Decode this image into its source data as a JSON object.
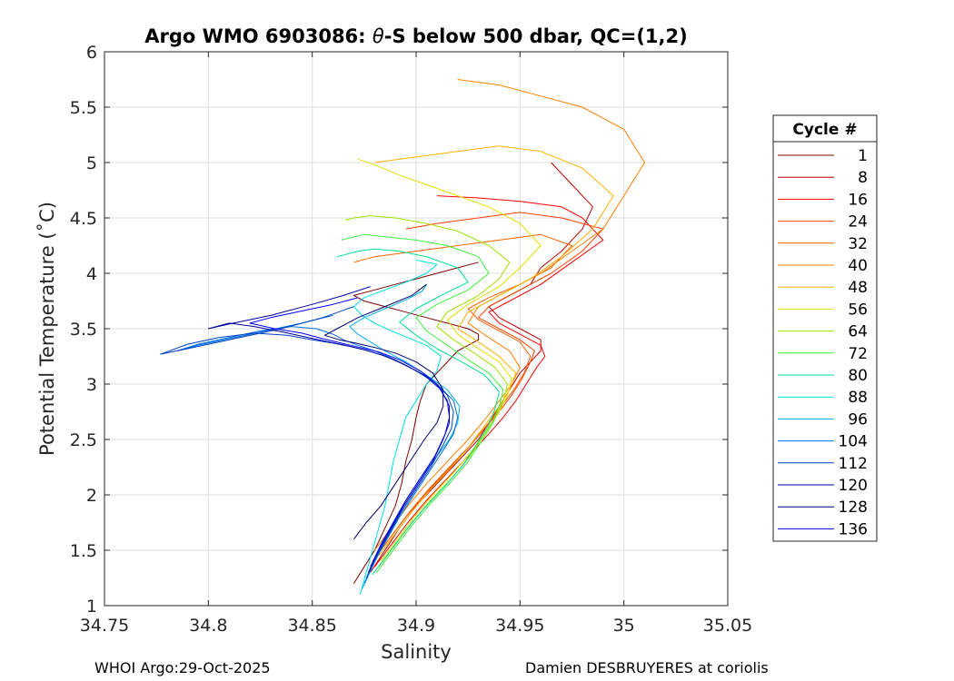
{
  "chart_data": {
    "type": "line",
    "title": "Argo WMO 6903086: θ-S below 500 dbar,  QC=(1,2)",
    "title_prefix": "Argo WMO 6903086: ",
    "title_theta": "θ",
    "title_suffix": "-S below 500 dbar,  QC=(1,2)",
    "xlabel": "Salinity",
    "ylabel": "Potential Temperature (˚C)",
    "xlim": [
      34.75,
      35.05
    ],
    "ylim": [
      1,
      6
    ],
    "xticks": [
      34.75,
      34.8,
      34.85,
      34.9,
      34.95,
      35,
      35.05
    ],
    "xtick_labels": [
      "34.75",
      "34.8",
      "34.85",
      "34.9",
      "34.95",
      "35",
      "35.05"
    ],
    "yticks": [
      1,
      1.5,
      2,
      2.5,
      3,
      3.5,
      4,
      4.5,
      5,
      5.5,
      6
    ],
    "ytick_labels": [
      "1",
      "1.5",
      "2",
      "2.5",
      "3",
      "3.5",
      "4",
      "4.5",
      "5",
      "5.5",
      "6"
    ],
    "grid": true,
    "legend_position": "right",
    "legend_title": "Cycle #",
    "series": [
      {
        "name": "1",
        "color": "#800000",
        "x": [
          34.87,
          34.875,
          34.88,
          34.885,
          34.89,
          34.893,
          34.895,
          34.898,
          34.9,
          34.902,
          34.905,
          34.91,
          34.915,
          34.92,
          34.925,
          34.93,
          34.93,
          34.925,
          34.915,
          34.905,
          34.895,
          34.885,
          34.875,
          34.87,
          34.88,
          34.89,
          34.9,
          34.91,
          34.92,
          34.93
        ],
        "y": [
          1.2,
          1.35,
          1.5,
          1.7,
          1.9,
          2.1,
          2.3,
          2.5,
          2.7,
          2.85,
          3.0,
          3.1,
          3.2,
          3.3,
          3.35,
          3.4,
          3.45,
          3.5,
          3.55,
          3.6,
          3.65,
          3.7,
          3.75,
          3.8,
          3.85,
          3.9,
          3.95,
          4.0,
          4.05,
          4.1
        ]
      },
      {
        "name": "8",
        "color": "#c00000",
        "x": [
          34.878,
          34.885,
          34.892,
          34.9,
          34.91,
          34.92,
          34.93,
          34.935,
          34.94,
          34.945,
          34.95,
          34.955,
          34.96,
          34.96,
          34.95,
          34.94,
          34.935,
          34.945,
          34.955,
          34.96,
          34.97,
          34.98,
          34.985,
          34.975,
          34.965
        ],
        "y": [
          1.3,
          1.5,
          1.7,
          1.9,
          2.1,
          2.3,
          2.5,
          2.65,
          2.8,
          2.95,
          3.1,
          3.2,
          3.3,
          3.4,
          3.5,
          3.6,
          3.7,
          3.8,
          3.9,
          4.05,
          4.2,
          4.4,
          4.6,
          4.8,
          5.0
        ]
      },
      {
        "name": "16",
        "color": "#ff0000",
        "x": [
          34.88,
          34.888,
          34.896,
          34.905,
          34.915,
          34.925,
          34.935,
          34.942,
          34.948,
          34.953,
          34.958,
          34.962,
          34.96,
          34.95,
          34.94,
          34.935,
          34.945,
          34.96,
          34.975,
          34.99,
          34.98,
          34.97,
          34.95,
          34.93,
          34.91
        ],
        "y": [
          1.35,
          1.55,
          1.75,
          1.95,
          2.15,
          2.35,
          2.55,
          2.7,
          2.85,
          3.0,
          3.15,
          3.25,
          3.35,
          3.45,
          3.55,
          3.65,
          3.75,
          3.9,
          4.1,
          4.3,
          4.5,
          4.6,
          4.65,
          4.68,
          4.7
        ]
      },
      {
        "name": "24",
        "color": "#ff4000",
        "x": [
          34.879,
          34.887,
          34.895,
          34.904,
          34.914,
          34.924,
          34.933,
          34.94,
          34.946,
          34.951,
          34.955,
          34.957,
          34.95,
          34.94,
          34.93,
          34.935,
          34.95,
          34.965,
          34.98,
          34.99,
          34.97,
          34.95,
          34.93,
          34.91,
          34.895
        ],
        "y": [
          1.4,
          1.6,
          1.8,
          2.0,
          2.2,
          2.4,
          2.6,
          2.75,
          2.9,
          3.05,
          3.2,
          3.3,
          3.4,
          3.5,
          3.6,
          3.7,
          3.85,
          4.0,
          4.2,
          4.4,
          4.5,
          4.55,
          4.5,
          4.45,
          4.4
        ]
      },
      {
        "name": "32",
        "color": "#ff6000",
        "x": [
          34.881,
          34.889,
          34.897,
          34.906,
          34.916,
          34.926,
          34.935,
          34.941,
          34.947,
          34.952,
          34.955,
          34.95,
          34.94,
          34.93,
          34.925,
          34.935,
          34.95,
          34.965,
          34.975,
          34.96,
          34.94,
          34.92,
          34.9,
          34.88,
          34.87
        ],
        "y": [
          1.45,
          1.65,
          1.85,
          2.05,
          2.25,
          2.45,
          2.65,
          2.8,
          2.95,
          3.1,
          3.25,
          3.38,
          3.48,
          3.58,
          3.68,
          3.78,
          3.9,
          4.05,
          4.25,
          4.35,
          4.3,
          4.25,
          4.2,
          4.15,
          4.1
        ]
      },
      {
        "name": "40",
        "color": "#ff8000",
        "x": [
          34.88,
          34.888,
          34.896,
          34.905,
          34.915,
          34.925,
          34.934,
          34.94,
          34.946,
          34.95,
          34.945,
          34.935,
          34.925,
          34.93,
          34.945,
          34.96,
          34.975,
          34.99,
          35.0,
          35.01,
          35.0,
          34.98,
          34.96,
          34.94,
          34.92
        ],
        "y": [
          1.5,
          1.7,
          1.9,
          2.1,
          2.3,
          2.5,
          2.7,
          2.85,
          3.0,
          3.15,
          3.3,
          3.42,
          3.55,
          3.7,
          3.85,
          4.0,
          4.2,
          4.4,
          4.7,
          5.0,
          5.3,
          5.5,
          5.6,
          5.7,
          5.75
        ]
      },
      {
        "name": "48",
        "color": "#ffb000",
        "x": [
          34.882,
          34.89,
          34.898,
          34.907,
          34.917,
          34.926,
          34.934,
          34.94,
          34.945,
          34.948,
          34.94,
          34.93,
          34.92,
          34.925,
          34.94,
          34.955,
          34.97,
          34.985,
          34.995,
          34.98,
          34.96,
          34.94,
          34.92,
          34.9,
          34.88
        ],
        "y": [
          1.45,
          1.65,
          1.85,
          2.05,
          2.25,
          2.45,
          2.65,
          2.8,
          2.95,
          3.1,
          3.25,
          3.38,
          3.5,
          3.65,
          3.8,
          3.95,
          4.15,
          4.4,
          4.7,
          4.95,
          5.1,
          5.15,
          5.1,
          5.05,
          5.0
        ]
      },
      {
        "name": "56",
        "color": "#e0e000",
        "x": [
          34.883,
          34.891,
          34.899,
          34.908,
          34.918,
          34.927,
          34.935,
          34.94,
          34.944,
          34.946,
          34.94,
          34.93,
          34.92,
          34.915,
          34.925,
          34.94,
          34.95,
          34.96,
          34.95,
          34.935,
          34.92,
          34.905,
          34.89,
          34.88,
          34.872
        ],
        "y": [
          1.4,
          1.6,
          1.8,
          2.0,
          2.2,
          2.4,
          2.6,
          2.75,
          2.9,
          3.05,
          3.2,
          3.32,
          3.45,
          3.58,
          3.72,
          3.88,
          4.05,
          4.25,
          4.45,
          4.6,
          4.7,
          4.8,
          4.9,
          4.98,
          5.03
        ]
      },
      {
        "name": "64",
        "color": "#a0e000",
        "x": [
          34.882,
          34.89,
          34.898,
          34.907,
          34.917,
          34.926,
          34.933,
          34.938,
          34.942,
          34.944,
          34.938,
          34.928,
          34.918,
          34.91,
          34.915,
          34.93,
          34.94,
          34.945,
          34.935,
          34.92,
          34.905,
          34.89,
          34.878,
          34.87,
          34.866
        ],
        "y": [
          1.35,
          1.55,
          1.75,
          1.95,
          2.15,
          2.35,
          2.55,
          2.7,
          2.85,
          3.0,
          3.15,
          3.28,
          3.4,
          3.52,
          3.65,
          3.8,
          3.95,
          4.1,
          4.25,
          4.38,
          4.45,
          4.5,
          4.52,
          4.5,
          4.48
        ]
      },
      {
        "name": "72",
        "color": "#40f040",
        "x": [
          34.881,
          34.889,
          34.897,
          34.906,
          34.916,
          34.925,
          34.932,
          34.937,
          34.94,
          34.942,
          34.935,
          34.925,
          34.915,
          34.905,
          34.9,
          34.91,
          34.925,
          34.935,
          34.93,
          34.915,
          34.9,
          34.885,
          34.875,
          34.868,
          34.864
        ],
        "y": [
          1.3,
          1.5,
          1.7,
          1.9,
          2.1,
          2.3,
          2.5,
          2.65,
          2.8,
          2.95,
          3.1,
          3.22,
          3.35,
          3.48,
          3.6,
          3.72,
          3.85,
          4.0,
          4.15,
          4.25,
          4.3,
          4.33,
          4.35,
          4.32,
          4.3
        ]
      },
      {
        "name": "80",
        "color": "#00e090",
        "x": [
          34.879,
          34.887,
          34.895,
          34.904,
          34.914,
          34.923,
          34.93,
          34.935,
          34.938,
          34.94,
          34.933,
          34.922,
          34.91,
          34.9,
          34.892,
          34.9,
          34.912,
          34.925,
          34.92,
          34.905,
          34.892,
          34.88,
          34.872,
          34.866,
          34.862
        ],
        "y": [
          1.28,
          1.48,
          1.68,
          1.88,
          2.08,
          2.28,
          2.48,
          2.63,
          2.78,
          2.93,
          3.08,
          3.2,
          3.32,
          3.44,
          3.56,
          3.68,
          3.8,
          3.92,
          4.05,
          4.15,
          4.2,
          4.22,
          4.2,
          4.17,
          4.15
        ]
      },
      {
        "name": "88",
        "color": "#00e0e0",
        "x": [
          34.873,
          34.876,
          34.879,
          34.882,
          34.885,
          34.887,
          34.889,
          34.892,
          34.895,
          34.9,
          34.905,
          34.91,
          34.912,
          34.905,
          34.896,
          34.888,
          34.88,
          34.874,
          34.87,
          34.875,
          34.885,
          34.895,
          34.905,
          34.91,
          34.9
        ],
        "y": [
          1.1,
          1.3,
          1.5,
          1.7,
          1.9,
          2.1,
          2.3,
          2.5,
          2.7,
          2.85,
          3.0,
          3.12,
          3.25,
          3.35,
          3.42,
          3.48,
          3.55,
          3.62,
          3.7,
          3.78,
          3.85,
          3.92,
          4.0,
          4.08,
          4.12
        ]
      },
      {
        "name": "96",
        "color": "#00b0f0",
        "x": [
          34.874,
          34.879,
          34.884,
          34.889,
          34.895,
          34.902,
          34.91,
          34.916,
          34.92,
          34.921,
          34.915,
          34.905,
          34.895,
          34.885,
          34.878,
          34.872,
          34.868,
          34.875,
          34.885,
          34.895,
          34.903,
          34.905
        ],
        "y": [
          1.15,
          1.35,
          1.55,
          1.75,
          1.95,
          2.15,
          2.35,
          2.5,
          2.65,
          2.8,
          2.95,
          3.08,
          3.2,
          3.3,
          3.38,
          3.45,
          3.52,
          3.6,
          3.68,
          3.76,
          3.84,
          3.9
        ]
      },
      {
        "name": "104",
        "color": "#0070e0",
        "x": [
          34.875,
          34.88,
          34.886,
          34.892,
          34.899,
          34.906,
          34.913,
          34.918,
          34.92,
          34.918,
          34.91,
          34.9,
          34.89,
          34.88,
          34.872,
          34.865,
          34.86,
          34.852,
          34.84,
          34.825,
          34.81,
          34.795,
          34.785,
          34.795,
          34.82,
          34.845,
          34.86
        ],
        "y": [
          1.2,
          1.4,
          1.6,
          1.8,
          2.0,
          2.2,
          2.4,
          2.55,
          2.7,
          2.85,
          3.0,
          3.12,
          3.22,
          3.3,
          3.35,
          3.4,
          3.45,
          3.5,
          3.52,
          3.48,
          3.42,
          3.36,
          3.3,
          3.35,
          3.45,
          3.55,
          3.62
        ]
      },
      {
        "name": "112",
        "color": "#0040c0",
        "x": [
          34.876,
          34.881,
          34.887,
          34.893,
          34.9,
          34.907,
          34.913,
          34.917,
          34.918,
          34.915,
          34.907,
          34.897,
          34.887,
          34.877,
          34.868,
          34.86,
          34.85,
          34.838,
          34.822,
          34.805,
          34.79,
          34.777,
          34.79,
          34.81,
          34.835,
          34.855,
          34.87
        ],
        "y": [
          1.25,
          1.45,
          1.65,
          1.85,
          2.05,
          2.25,
          2.45,
          2.6,
          2.75,
          2.9,
          3.05,
          3.15,
          3.24,
          3.3,
          3.34,
          3.37,
          3.4,
          3.44,
          3.46,
          3.42,
          3.36,
          3.27,
          3.32,
          3.4,
          3.5,
          3.6,
          3.7
        ]
      },
      {
        "name": "120",
        "color": "#0000a0",
        "x": [
          34.877,
          34.882,
          34.888,
          34.894,
          34.901,
          34.908,
          34.913,
          34.916,
          34.916,
          34.912,
          34.904,
          34.894,
          34.884,
          34.875,
          34.866,
          34.858,
          34.848,
          34.836,
          34.822,
          34.81,
          34.8,
          34.812,
          34.83,
          34.85,
          34.865,
          34.878
        ],
        "y": [
          1.3,
          1.5,
          1.7,
          1.9,
          2.1,
          2.3,
          2.5,
          2.65,
          2.8,
          2.95,
          3.08,
          3.18,
          3.26,
          3.31,
          3.35,
          3.38,
          3.42,
          3.47,
          3.52,
          3.55,
          3.5,
          3.55,
          3.62,
          3.72,
          3.8,
          3.88
        ]
      },
      {
        "name": "128",
        "color": "#000070",
        "x": [
          34.87,
          34.876,
          34.883,
          34.89,
          34.897,
          34.904,
          34.91,
          34.913,
          34.913,
          34.908,
          34.9,
          34.89,
          34.88,
          34.871,
          34.863,
          34.856,
          34.862,
          34.872,
          34.885,
          34.898,
          34.905
        ],
        "y": [
          1.6,
          1.75,
          1.9,
          2.1,
          2.3,
          2.5,
          2.65,
          2.8,
          2.95,
          3.1,
          3.2,
          3.28,
          3.33,
          3.37,
          3.4,
          3.44,
          3.5,
          3.6,
          3.7,
          3.8,
          3.9
        ]
      },
      {
        "name": "136",
        "color": "#0000ff",
        "x": [
          34.878,
          34.883,
          34.889,
          34.895,
          34.902,
          34.909,
          34.914,
          34.916,
          34.915,
          34.91,
          34.902,
          34.892,
          34.882,
          34.873,
          34.864,
          34.855,
          34.845,
          34.832,
          34.82,
          34.83,
          34.845,
          34.86,
          34.872
        ],
        "y": [
          1.35,
          1.55,
          1.75,
          1.95,
          2.15,
          2.35,
          2.55,
          2.7,
          2.85,
          3.0,
          3.12,
          3.22,
          3.29,
          3.33,
          3.37,
          3.41,
          3.46,
          3.5,
          3.55,
          3.6,
          3.66,
          3.72,
          3.78
        ]
      }
    ],
    "footer_left": "WHOI Argo:29-Oct-2025",
    "footer_right": "Damien DESBRUYERES at coriolis"
  }
}
